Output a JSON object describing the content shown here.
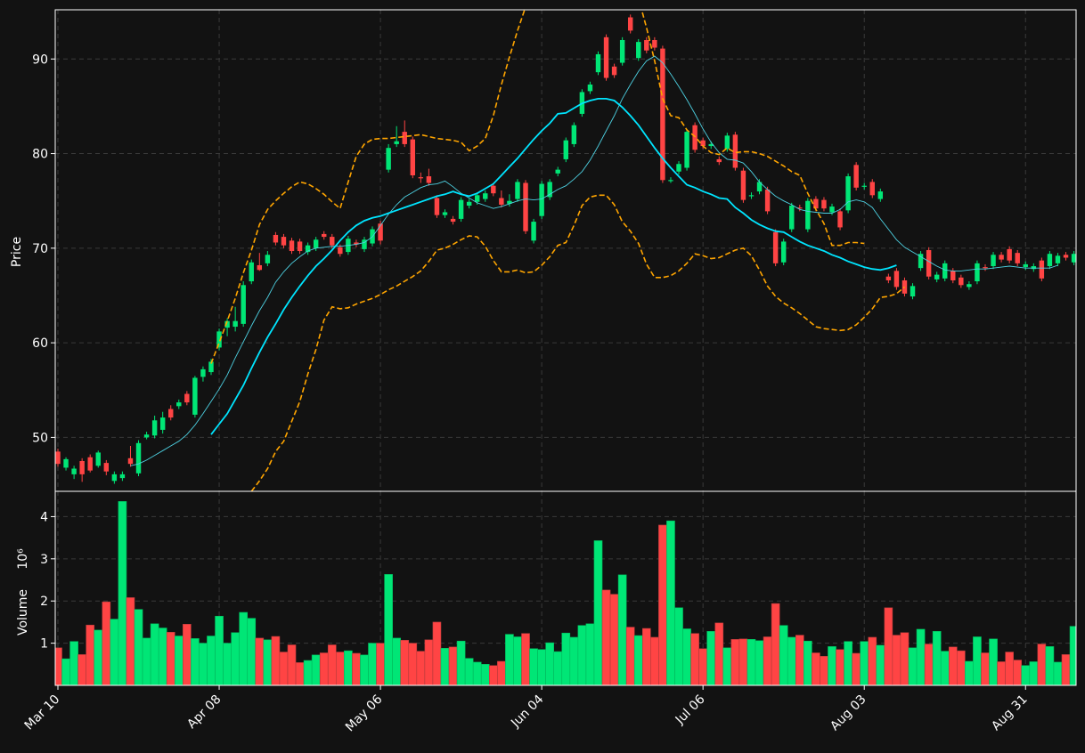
{
  "chart_data": {
    "type": "candlestick",
    "theme": {
      "background": "#121212",
      "up_color": "#00e676",
      "down_color": "#ff4444",
      "sma_color": "#00e5ff",
      "band_color": "#ffa500",
      "grid_color": "#3a3a3a"
    },
    "price_axis": {
      "label": "Price",
      "ylim": [
        44.3,
        95.2
      ],
      "ticks": [
        50,
        60,
        70,
        80,
        90
      ]
    },
    "volume_axis": {
      "label": "Volume",
      "unit": "10⁶",
      "ylim": [
        0,
        4.6
      ],
      "ticks": [
        1,
        2,
        3,
        4
      ]
    },
    "x_axis": {
      "tick_labels": [
        "Mar 10",
        "Apr 08",
        "May 06",
        "Jun 04",
        "Jul 06",
        "Aug 03",
        "Aug 31"
      ],
      "tick_indices": [
        0,
        20,
        40,
        60,
        80,
        100,
        120
      ]
    },
    "grid": true,
    "candles": [
      [
        48.5,
        47.2,
        48.8,
        46.9,
        0.89
      ],
      [
        46.8,
        47.7,
        47.9,
        46.5,
        0.63
      ],
      [
        46.1,
        46.7,
        47.0,
        45.6,
        1.04
      ],
      [
        47.5,
        46.1,
        47.8,
        45.3,
        0.73
      ],
      [
        47.9,
        46.5,
        48.2,
        46.3,
        1.43
      ],
      [
        47.0,
        48.4,
        48.6,
        46.8,
        1.31
      ],
      [
        47.3,
        46.4,
        47.6,
        46.0,
        1.98
      ],
      [
        45.4,
        46.1,
        46.4,
        45.1,
        1.57
      ],
      [
        45.7,
        46.1,
        46.4,
        45.4,
        4.36
      ],
      [
        47.8,
        47.2,
        49.1,
        46.9,
        2.08
      ],
      [
        46.2,
        49.4,
        49.7,
        45.9,
        1.8
      ],
      [
        50.0,
        50.3,
        50.6,
        49.8,
        1.12
      ],
      [
        50.2,
        51.8,
        52.3,
        49.9,
        1.46
      ],
      [
        50.8,
        52.1,
        52.7,
        50.4,
        1.36
      ],
      [
        53.0,
        52.1,
        53.4,
        51.8,
        1.26
      ],
      [
        53.3,
        53.7,
        54.0,
        53.0,
        1.17
      ],
      [
        54.6,
        53.7,
        54.9,
        53.4,
        1.45
      ],
      [
        52.4,
        56.3,
        56.5,
        52.1,
        1.11
      ],
      [
        56.4,
        57.2,
        57.5,
        55.9,
        1.0
      ],
      [
        56.9,
        58.0,
        58.3,
        56.6,
        1.17
      ],
      [
        59.5,
        61.2,
        61.5,
        59.2,
        1.64
      ],
      [
        61.6,
        62.3,
        62.6,
        60.7,
        1.0
      ],
      [
        61.7,
        62.3,
        63.8,
        61.2,
        1.25
      ],
      [
        62.0,
        66.1,
        66.5,
        61.7,
        1.73
      ],
      [
        66.5,
        68.5,
        68.8,
        66.2,
        1.59
      ],
      [
        68.2,
        67.7,
        69.5,
        67.6,
        1.12
      ],
      [
        68.4,
        69.3,
        69.7,
        68.1,
        1.08
      ],
      [
        71.4,
        70.6,
        71.7,
        70.3,
        1.16
      ],
      [
        71.2,
        70.3,
        71.5,
        70.0,
        0.79
      ],
      [
        70.8,
        69.7,
        71.1,
        69.4,
        0.96
      ],
      [
        70.7,
        69.7,
        71.0,
        69.4,
        0.54
      ],
      [
        69.6,
        70.3,
        70.6,
        69.3,
        0.59
      ],
      [
        70.0,
        70.9,
        71.2,
        69.7,
        0.72
      ],
      [
        71.5,
        71.2,
        71.8,
        70.9,
        0.77
      ],
      [
        71.2,
        70.3,
        71.5,
        70.0,
        0.96
      ],
      [
        70.1,
        69.4,
        70.4,
        69.1,
        0.79
      ],
      [
        69.6,
        71.0,
        71.3,
        69.3,
        0.82
      ],
      [
        70.6,
        70.4,
        70.9,
        70.1,
        0.76
      ],
      [
        69.9,
        70.9,
        71.2,
        69.6,
        0.72
      ],
      [
        70.5,
        72.0,
        72.3,
        70.2,
        1.0
      ],
      [
        72.6,
        70.8,
        72.9,
        70.4,
        1.0
      ],
      [
        78.3,
        80.6,
        81.0,
        78.0,
        2.63
      ],
      [
        81.0,
        81.3,
        82.9,
        80.7,
        1.12
      ],
      [
        82.3,
        81.0,
        83.5,
        80.7,
        1.07
      ],
      [
        81.5,
        77.7,
        81.8,
        77.4,
        1.0
      ],
      [
        77.5,
        77.4,
        78.0,
        76.9,
        0.81
      ],
      [
        77.6,
        76.9,
        78.4,
        76.6,
        1.08
      ],
      [
        75.3,
        73.5,
        75.6,
        73.2,
        1.5
      ],
      [
        73.5,
        73.8,
        74.1,
        73.2,
        0.88
      ],
      [
        73.1,
        72.8,
        73.4,
        72.5,
        0.91
      ],
      [
        73.1,
        75.1,
        75.4,
        72.8,
        1.05
      ],
      [
        74.5,
        74.9,
        75.2,
        74.2,
        0.64
      ],
      [
        74.9,
        75.6,
        75.9,
        74.6,
        0.55
      ],
      [
        75.2,
        75.8,
        76.1,
        74.9,
        0.5
      ],
      [
        76.6,
        75.8,
        76.9,
        75.5,
        0.47
      ],
      [
        75.3,
        74.6,
        76.1,
        74.3,
        0.57
      ],
      [
        74.7,
        75.0,
        75.7,
        74.4,
        1.21
      ],
      [
        75.2,
        77.0,
        77.3,
        74.9,
        1.15
      ],
      [
        76.9,
        71.8,
        77.2,
        71.5,
        1.23
      ],
      [
        70.8,
        72.8,
        73.1,
        70.5,
        0.87
      ],
      [
        73.4,
        76.8,
        77.1,
        73.1,
        0.85
      ],
      [
        75.4,
        77.0,
        77.3,
        75.1,
        1.01
      ],
      [
        77.9,
        78.3,
        78.6,
        77.6,
        0.8
      ],
      [
        79.4,
        81.4,
        81.7,
        79.1,
        1.24
      ],
      [
        81.0,
        83.0,
        83.3,
        80.7,
        1.14
      ],
      [
        84.2,
        86.5,
        86.8,
        83.9,
        1.42
      ],
      [
        86.6,
        87.3,
        87.6,
        86.3,
        1.46
      ],
      [
        88.6,
        90.5,
        90.8,
        88.3,
        3.43
      ],
      [
        92.3,
        88.0,
        92.6,
        87.7,
        2.26
      ],
      [
        89.2,
        88.3,
        89.5,
        88.0,
        2.16
      ],
      [
        89.6,
        92.0,
        92.3,
        89.3,
        2.62
      ],
      [
        94.4,
        93.0,
        94.7,
        92.7,
        1.38
      ],
      [
        90.1,
        91.8,
        92.1,
        89.8,
        1.18
      ],
      [
        92.0,
        90.9,
        92.3,
        90.6,
        1.35
      ],
      [
        92.0,
        91.2,
        92.3,
        90.9,
        1.14
      ],
      [
        91.1,
        77.2,
        91.4,
        76.9,
        3.8
      ],
      [
        77.2,
        77.2,
        77.5,
        76.9,
        3.9
      ],
      [
        78.1,
        78.9,
        79.2,
        77.8,
        1.84
      ],
      [
        78.5,
        82.3,
        82.6,
        78.2,
        1.34
      ],
      [
        83.0,
        80.4,
        83.3,
        80.1,
        1.23
      ],
      [
        81.4,
        80.8,
        81.7,
        80.5,
        0.87
      ],
      [
        80.8,
        81.0,
        81.3,
        80.5,
        1.28
      ],
      [
        79.4,
        79.1,
        79.7,
        78.8,
        1.48
      ],
      [
        80.5,
        81.9,
        82.2,
        80.2,
        0.89
      ],
      [
        82.0,
        78.5,
        82.3,
        78.2,
        1.09
      ],
      [
        78.2,
        75.1,
        78.5,
        74.8,
        1.1
      ],
      [
        75.5,
        75.6,
        75.9,
        75.2,
        1.09
      ],
      [
        76.0,
        77.0,
        77.3,
        75.7,
        1.06
      ],
      [
        76.2,
        73.9,
        76.5,
        73.6,
        1.15
      ],
      [
        71.7,
        68.4,
        72.0,
        68.1,
        1.94
      ],
      [
        68.5,
        70.7,
        71.0,
        68.2,
        1.42
      ],
      [
        72.0,
        74.5,
        74.8,
        71.7,
        1.14
      ],
      [
        74.3,
        74.2,
        74.6,
        73.9,
        1.19
      ],
      [
        72.0,
        75.0,
        75.3,
        71.7,
        1.05
      ],
      [
        75.2,
        74.2,
        75.5,
        73.9,
        0.77
      ],
      [
        75.1,
        74.2,
        75.4,
        73.9,
        0.69
      ],
      [
        73.8,
        74.4,
        74.7,
        73.5,
        0.92
      ],
      [
        73.9,
        72.2,
        74.2,
        71.9,
        0.85
      ],
      [
        74.0,
        77.6,
        77.9,
        73.7,
        1.04
      ],
      [
        78.8,
        76.4,
        79.1,
        76.1,
        0.76
      ],
      [
        76.5,
        76.6,
        76.9,
        76.2,
        1.04
      ],
      [
        77.0,
        75.6,
        77.3,
        75.3,
        1.14
      ],
      [
        75.2,
        76.0,
        76.3,
        74.9,
        0.95
      ],
      [
        67.0,
        66.6,
        67.3,
        66.3,
        1.84
      ],
      [
        67.6,
        65.9,
        67.9,
        65.6,
        1.19
      ],
      [
        66.6,
        65.2,
        66.9,
        64.9,
        1.25
      ],
      [
        64.9,
        66.0,
        66.3,
        64.6,
        0.89
      ],
      [
        67.9,
        69.4,
        69.7,
        67.6,
        1.33
      ],
      [
        69.8,
        67.0,
        70.1,
        66.7,
        0.98
      ],
      [
        66.7,
        67.2,
        67.5,
        66.4,
        1.28
      ],
      [
        66.8,
        68.4,
        68.7,
        66.5,
        0.81
      ],
      [
        67.6,
        66.6,
        67.9,
        66.3,
        0.91
      ],
      [
        66.9,
        66.1,
        67.2,
        65.8,
        0.82
      ],
      [
        65.9,
        66.2,
        66.5,
        65.6,
        0.57
      ],
      [
        66.5,
        68.4,
        68.7,
        66.2,
        1.15
      ],
      [
        68.0,
        67.9,
        68.3,
        67.6,
        0.77
      ],
      [
        68.1,
        69.3,
        69.6,
        67.8,
        1.1
      ],
      [
        69.3,
        68.8,
        69.6,
        68.5,
        0.56
      ],
      [
        69.9,
        68.7,
        70.2,
        68.4,
        0.79
      ],
      [
        69.5,
        68.4,
        69.8,
        68.1,
        0.6
      ],
      [
        68.0,
        68.3,
        68.6,
        67.7,
        0.47
      ],
      [
        67.8,
        68.1,
        68.4,
        67.5,
        0.56
      ],
      [
        68.7,
        66.8,
        69.0,
        66.5,
        0.98
      ],
      [
        68.1,
        69.4,
        69.7,
        67.8,
        0.92
      ],
      [
        68.4,
        69.2,
        69.5,
        68.1,
        0.55
      ],
      [
        69.3,
        69.0,
        69.6,
        68.7,
        0.73
      ],
      [
        68.5,
        69.4,
        69.7,
        68.2,
        1.4
      ]
    ],
    "overlays": [
      {
        "name": "sma_fast",
        "style": "solid-thin",
        "color": "#4dd0e1",
        "start_index": 9,
        "values": [
          47.0,
          47.2,
          47.6,
          48.1,
          48.6,
          49.1,
          49.6,
          50.3,
          51.3,
          52.5,
          53.8,
          55.1,
          56.6,
          58.4,
          60.1,
          61.8,
          63.4,
          64.8,
          66.4,
          67.5,
          68.4,
          69.1,
          69.7,
          70.0,
          70.1,
          70.2,
          70.2,
          70.3,
          70.4,
          70.6,
          71.2,
          72.4,
          73.6,
          74.6,
          75.4,
          75.9,
          76.4,
          76.7,
          76.8,
          77.1,
          76.5,
          75.8,
          75.3,
          74.8,
          74.5,
          74.2,
          74.4,
          74.7,
          75.0,
          75.2,
          75.1,
          75.2,
          75.7,
          76.2,
          76.6,
          77.3,
          78.1,
          79.3,
          80.8,
          82.4,
          84.0,
          85.8,
          87.3,
          88.7,
          89.8,
          90.3,
          89.6,
          88.4,
          87.1,
          85.7,
          84.2,
          82.6,
          81.2,
          80.1,
          79.4,
          79.3,
          79.0,
          78.1,
          77.0,
          76.2,
          75.5,
          75.0,
          74.6,
          74.1,
          73.9,
          73.8,
          73.7,
          73.7,
          74.1,
          74.9,
          75.1,
          74.9,
          74.3,
          73.1,
          72.0,
          70.9,
          70.1,
          69.6,
          69.1,
          68.6,
          68.1,
          67.7,
          67.6,
          67.6,
          67.7,
          67.8,
          67.8,
          67.9,
          68.0,
          68.1,
          68.0,
          67.9,
          67.9,
          67.9,
          67.9,
          68.2
        ]
      },
      {
        "name": "sma_slow",
        "style": "solid",
        "color": "#00e5ff",
        "start_index": 19,
        "values": [
          50.3,
          51.4,
          52.5,
          54.0,
          55.5,
          57.3,
          59.0,
          60.6,
          62.0,
          63.5,
          64.8,
          66.0,
          67.1,
          68.1,
          68.9,
          69.8,
          70.8,
          71.7,
          72.4,
          72.9,
          73.2,
          73.4,
          73.7,
          74.0,
          74.3,
          74.6,
          74.9,
          75.2,
          75.5,
          75.7,
          76.0,
          75.7,
          75.5,
          75.8,
          76.3,
          76.8,
          77.7,
          78.6,
          79.5,
          80.5,
          81.5,
          82.4,
          83.2,
          84.2,
          84.3,
          84.8,
          85.3,
          85.6,
          85.8,
          85.8,
          85.6,
          84.9,
          84.0,
          83.0,
          81.8,
          80.6,
          79.5,
          78.5,
          77.6,
          76.7,
          76.4,
          76.0,
          75.7,
          75.3,
          75.2,
          74.3,
          73.7,
          73.0,
          72.5,
          72.1,
          71.8,
          71.7,
          71.2,
          70.7,
          70.3,
          70.0,
          69.7,
          69.3,
          69.0,
          68.6,
          68.3,
          68.0,
          67.8,
          67.7,
          67.9,
          68.2
        ]
      },
      {
        "name": "band_upper",
        "style": "dashed",
        "color": "#ffa500",
        "start_index": 19,
        "values": [
          57.8,
          60.0,
          62.3,
          64.7,
          67.4,
          69.8,
          72.5,
          74.1,
          75.0,
          75.8,
          76.5,
          77.0,
          76.8,
          76.3,
          75.7,
          74.9,
          74.2,
          77.0,
          79.7,
          81.0,
          81.5,
          81.6,
          81.6,
          81.7,
          81.8,
          81.9,
          82.0,
          81.8,
          81.6,
          81.5,
          81.4,
          81.2,
          80.3,
          80.8,
          81.6,
          84.0,
          87.3,
          90.2,
          93.0,
          95.5,
          99.0,
          101.5,
          103.5,
          105.0,
          105.8,
          106.3,
          106.5,
          106.3,
          105.8,
          104.8,
          103.3,
          101.5,
          99.2,
          96.4,
          93.3,
          89.8,
          85.8,
          84.0,
          83.8,
          82.5,
          81.8,
          80.8,
          80.1,
          79.9,
          80.6,
          80.1,
          80.2,
          80.2,
          80.0,
          79.7,
          79.2,
          78.7,
          78.1,
          77.7,
          75.8,
          74.1,
          72.6,
          70.3,
          70.3,
          70.6,
          70.6,
          70.5
        ]
      },
      {
        "name": "band_lower",
        "style": "dashed",
        "color": "#ffa500",
        "start_index": 24,
        "values": [
          44.3,
          45.4,
          46.7,
          48.5,
          49.6,
          51.7,
          53.8,
          56.7,
          59.3,
          62.4,
          63.8,
          63.6,
          63.7,
          64.1,
          64.4,
          64.7,
          65.1,
          65.6,
          66.0,
          66.5,
          67.0,
          67.6,
          68.6,
          69.8,
          70.0,
          70.4,
          70.9,
          71.3,
          71.2,
          70.2,
          68.7,
          67.5,
          67.5,
          67.7,
          67.4,
          67.5,
          68.2,
          69.1,
          70.3,
          70.6,
          72.4,
          74.5,
          75.4,
          75.6,
          75.6,
          74.6,
          72.8,
          71.8,
          70.5,
          68.3,
          66.9,
          66.9,
          67.1,
          67.6,
          68.4,
          69.4,
          69.2,
          68.9,
          69.0,
          69.4,
          69.8,
          70.0,
          69.2,
          67.7,
          66.0,
          64.9,
          64.2,
          63.7,
          63.1,
          62.4,
          61.7,
          61.5,
          61.4,
          61.3,
          61.4,
          61.9,
          62.7,
          63.6,
          64.8,
          64.9,
          65.2,
          65.9
        ]
      }
    ]
  }
}
